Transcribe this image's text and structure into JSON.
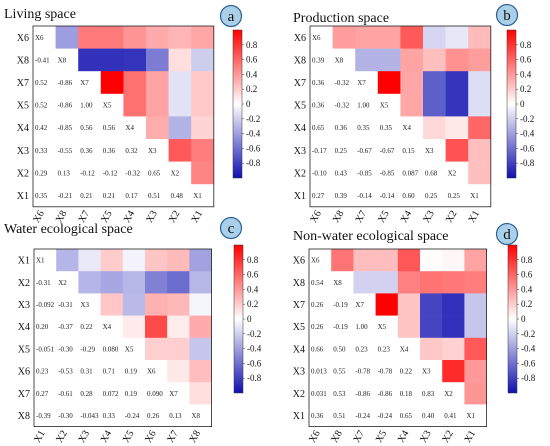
{
  "colors": {
    "negative": "#1010b0",
    "zero": "#ffffff",
    "positive": "#ff0000",
    "badge": "#aacfe9"
  },
  "chart_data": [
    {
      "type": "heatmap",
      "title": "Living space",
      "badge": "a",
      "vars": [
        "X6",
        "X8",
        "X7",
        "X5",
        "X4",
        "X3",
        "X2",
        "X1"
      ],
      "colorbar_ticks": [
        "0.8",
        "0.6",
        "0.4",
        "0.2",
        "0",
        "-0.2",
        "-0.4",
        "-0.6",
        "-0.8"
      ],
      "labels": [
        [
          "X6",
          "",
          "",
          "",
          "",
          "",
          "",
          ""
        ],
        [
          "-0.41",
          "X8",
          "",
          "",
          "",
          "",
          "",
          ""
        ],
        [
          "0.52",
          "-0.86",
          "X7",
          "",
          "",
          "",
          "",
          ""
        ],
        [
          "0.52",
          "-0.86",
          "1.00",
          "X5",
          "",
          "",
          "",
          ""
        ],
        [
          "0.42",
          "-0.85",
          "0.56",
          "0.56",
          "X4",
          "",
          "",
          ""
        ],
        [
          "0.33",
          "-0.55",
          "0.36",
          "0.36",
          "0.32",
          "X3",
          "",
          ""
        ],
        [
          "0.29",
          "0.13",
          "-0.12",
          "-0.12",
          "-0.32",
          "0.65",
          "X2",
          ""
        ],
        [
          "0.35",
          "-0.21",
          "0.21",
          "0.21",
          "0.17",
          "0.51",
          "0.48",
          "X1"
        ]
      ],
      "matrix": [
        [
          1,
          -0.41,
          0.52,
          0.52,
          0.42,
          0.33,
          0.29,
          0.35
        ],
        [
          -0.41,
          1,
          -0.86,
          -0.86,
          -0.85,
          -0.55,
          0.13,
          -0.21
        ],
        [
          0.52,
          -0.86,
          1,
          1,
          0.56,
          0.36,
          -0.12,
          0.21
        ],
        [
          0.52,
          -0.86,
          1,
          1,
          0.56,
          0.36,
          -0.12,
          0.21
        ],
        [
          0.42,
          -0.85,
          0.56,
          0.56,
          1,
          0.32,
          -0.32,
          0.17
        ],
        [
          0.33,
          -0.55,
          0.36,
          0.36,
          0.32,
          1,
          0.65,
          0.51
        ],
        [
          0.29,
          0.13,
          -0.12,
          -0.12,
          -0.32,
          0.65,
          1,
          0.48
        ],
        [
          0.35,
          -0.21,
          0.21,
          0.21,
          0.17,
          0.51,
          0.48,
          1
        ]
      ]
    },
    {
      "type": "heatmap",
      "title": "Production space",
      "badge": "b",
      "vars": [
        "X6",
        "X8",
        "X7",
        "X5",
        "X4",
        "X3",
        "X2",
        "X1"
      ],
      "colorbar_ticks": [
        "0.8",
        "0.6",
        "0.4",
        "0.2",
        "0",
        "-0.2",
        "-0.4",
        "-0.6",
        "-0.8"
      ],
      "labels": [
        [
          "X6",
          "",
          "",
          "",
          "",
          "",
          "",
          ""
        ],
        [
          "0.39",
          "X8",
          "",
          "",
          "",
          "",
          "",
          ""
        ],
        [
          "0.36",
          "-0.32",
          "X7",
          "",
          "",
          "",
          "",
          ""
        ],
        [
          "0.36",
          "-0.32",
          "1.00",
          "X5",
          "",
          "",
          "",
          ""
        ],
        [
          "0.65",
          "0.36",
          "0.35",
          "0.35",
          "X4",
          "",
          "",
          ""
        ],
        [
          "-0.17",
          "0.25",
          "-0.67",
          "-0.67",
          "0.15",
          "X3",
          "",
          ""
        ],
        [
          "-0.10",
          "0.43",
          "-0.85",
          "-0.85",
          "0.087",
          "0.68",
          "X2",
          ""
        ],
        [
          "0.27",
          "0.39",
          "-0.14",
          "-0.14",
          "0.60",
          "0.25",
          "0.25",
          "X1"
        ]
      ],
      "matrix": [
        [
          1,
          0.39,
          0.36,
          0.36,
          0.65,
          -0.17,
          -0.1,
          0.27
        ],
        [
          0.39,
          1,
          -0.32,
          -0.32,
          0.36,
          0.25,
          0.43,
          0.39
        ],
        [
          0.36,
          -0.32,
          1,
          1,
          0.35,
          -0.67,
          -0.85,
          -0.14
        ],
        [
          0.36,
          -0.32,
          1,
          1,
          0.35,
          -0.67,
          -0.85,
          -0.14
        ],
        [
          0.65,
          0.36,
          0.35,
          0.35,
          1,
          0.15,
          0.087,
          0.6
        ],
        [
          -0.17,
          0.25,
          -0.67,
          -0.67,
          0.15,
          1,
          0.68,
          0.25
        ],
        [
          -0.1,
          0.43,
          -0.85,
          -0.85,
          0.087,
          0.68,
          1,
          0.25
        ],
        [
          0.27,
          0.39,
          -0.14,
          -0.14,
          0.6,
          0.25,
          0.25,
          1
        ]
      ]
    },
    {
      "type": "heatmap",
      "title": "Water ecological space",
      "badge": "c",
      "vars": [
        "X1",
        "X2",
        "X3",
        "X4",
        "X5",
        "X6",
        "X7",
        "X8"
      ],
      "colorbar_ticks": [
        "0.8",
        "0.6",
        "0.4",
        "0.2",
        "0",
        "-0.2",
        "-0.4",
        "-0.6",
        "-0.8"
      ],
      "labels": [
        [
          "X1",
          "",
          "",
          "",
          "",
          "",
          "",
          ""
        ],
        [
          "-0.31",
          "X2",
          "",
          "",
          "",
          "",
          "",
          ""
        ],
        [
          "-0.092",
          "-0.31",
          "X3",
          "",
          "",
          "",
          "",
          ""
        ],
        [
          "0.20",
          "-0.37",
          "0.22",
          "X4",
          "",
          "",
          "",
          ""
        ],
        [
          "-0.051",
          "-0.30",
          "-0.29",
          "0.080",
          "X5",
          "",
          "",
          ""
        ],
        [
          "0.23",
          "-0.53",
          "0.31",
          "0.71",
          "0.19",
          "X6",
          "",
          ""
        ],
        [
          "0.27",
          "-0.61",
          "0.28",
          "0.072",
          "0.19",
          "0.090",
          "X7",
          ""
        ],
        [
          "-0.39",
          "-0.30",
          "-0.043",
          "0.33",
          "-0.24",
          "0.26",
          "0.13",
          "X8"
        ]
      ],
      "matrix": [
        [
          1,
          -0.31,
          -0.092,
          0.2,
          -0.051,
          0.23,
          0.27,
          -0.39
        ],
        [
          -0.31,
          1,
          -0.31,
          -0.37,
          -0.3,
          -0.53,
          -0.61,
          -0.3
        ],
        [
          -0.092,
          -0.31,
          1,
          0.22,
          -0.29,
          0.31,
          0.28,
          -0.043
        ],
        [
          0.2,
          -0.37,
          0.22,
          1,
          0.08,
          0.71,
          0.072,
          0.33
        ],
        [
          -0.051,
          -0.3,
          -0.29,
          0.08,
          1,
          0.19,
          0.19,
          -0.24
        ],
        [
          0.23,
          -0.53,
          0.31,
          0.71,
          0.19,
          1,
          0.09,
          0.26
        ],
        [
          0.27,
          -0.61,
          0.28,
          0.072,
          0.19,
          0.09,
          1,
          0.13
        ],
        [
          -0.39,
          -0.3,
          -0.043,
          0.33,
          -0.24,
          0.26,
          0.13,
          1
        ]
      ]
    },
    {
      "type": "heatmap",
      "title": "Non-water ecological space",
      "badge": "d",
      "vars": [
        "X6",
        "X8",
        "X7",
        "X5",
        "X4",
        "X3",
        "X2",
        "X1"
      ],
      "colorbar_ticks": [
        "0.8",
        "0.6",
        "0.4",
        "0.2",
        "0",
        "-0.2",
        "-0.4",
        "-0.6",
        "-0.8"
      ],
      "labels": [
        [
          "X6",
          "",
          "",
          "",
          "",
          "",
          "",
          ""
        ],
        [
          "0.54",
          "X8",
          "",
          "",
          "",
          "",
          "",
          ""
        ],
        [
          "0.26",
          "-0.19",
          "X7",
          "",
          "",
          "",
          "",
          ""
        ],
        [
          "0.26",
          "-0.19",
          "1.00",
          "X5",
          "",
          "",
          "",
          ""
        ],
        [
          "0.66",
          "0.50",
          "0.23",
          "0.23",
          "X4",
          "",
          "",
          ""
        ],
        [
          "0.013",
          "0.55",
          "-0.78",
          "-0.78",
          "0.22",
          "X3",
          "",
          ""
        ],
        [
          "0.031",
          "0.53",
          "-0.86",
          "-0.86",
          "0.18",
          "0.83",
          "X2",
          ""
        ],
        [
          "0.36",
          "0.51",
          "-0.24",
          "-0.24",
          "0.65",
          "0.40",
          "0.41",
          "X1"
        ]
      ],
      "matrix": [
        [
          1,
          0.54,
          0.26,
          0.26,
          0.66,
          0.013,
          0.031,
          0.36
        ],
        [
          0.54,
          1,
          -0.19,
          -0.19,
          0.5,
          0.55,
          0.53,
          0.51
        ],
        [
          0.26,
          -0.19,
          1,
          1,
          0.23,
          -0.78,
          -0.86,
          -0.24
        ],
        [
          0.26,
          -0.19,
          1,
          1,
          0.23,
          -0.78,
          -0.86,
          -0.24
        ],
        [
          0.66,
          0.5,
          0.23,
          0.23,
          1,
          0.22,
          0.18,
          0.65
        ],
        [
          0.013,
          0.55,
          -0.78,
          -0.78,
          0.22,
          1,
          0.83,
          0.4
        ],
        [
          0.031,
          0.53,
          -0.86,
          -0.86,
          0.18,
          0.83,
          1,
          0.41
        ],
        [
          0.36,
          0.51,
          -0.24,
          -0.24,
          0.65,
          0.4,
          0.41,
          1
        ]
      ]
    }
  ]
}
